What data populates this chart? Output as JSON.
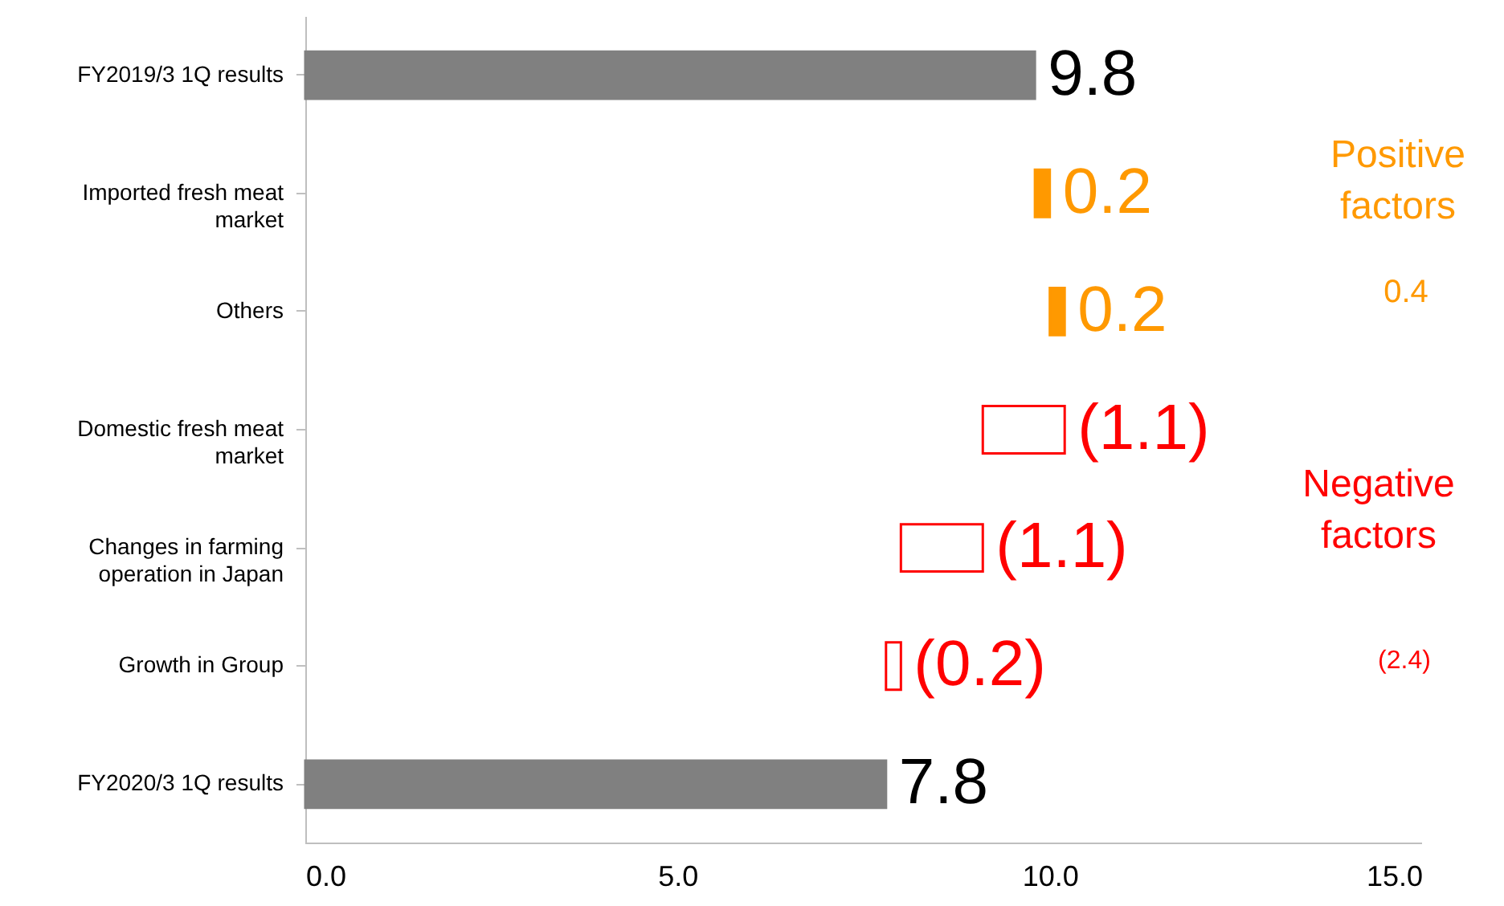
{
  "chart_data": {
    "type": "bar",
    "orientation": "horizontal",
    "categories": [
      "FY2019/3 1Q results",
      "Imported fresh meat market",
      "Others",
      "Domestic fresh meat market",
      "Changes in farming operation in Japan",
      "Growth in Group",
      "FY2020/3 1Q results"
    ],
    "values": [
      9.8,
      0.2,
      0.2,
      -1.1,
      -1.1,
      -0.2,
      7.8
    ],
    "base": [
      0,
      9.8,
      10.0,
      10.2,
      9.1,
      8.0,
      0
    ],
    "colors": [
      "#808080",
      "#ff9900",
      "#ff9900",
      "#ff0000",
      "#ff0000",
      "#ff0000",
      "#808080"
    ],
    "value_labels": [
      "9.8",
      "0.2",
      "0.2",
      "(1.1)",
      "(1.1)",
      "(0.2)",
      "7.8"
    ],
    "xlim": [
      0,
      15
    ],
    "xticks": [
      {
        "value": 0,
        "label": "0.0"
      },
      {
        "value": 5,
        "label": "5.0"
      },
      {
        "value": 10,
        "label": "10.0"
      },
      {
        "value": 15,
        "label": "15.0"
      }
    ],
    "grid": false,
    "annotations": [
      "Positive factors",
      "0.4",
      "Negative factors",
      "(2.4)"
    ]
  }
}
